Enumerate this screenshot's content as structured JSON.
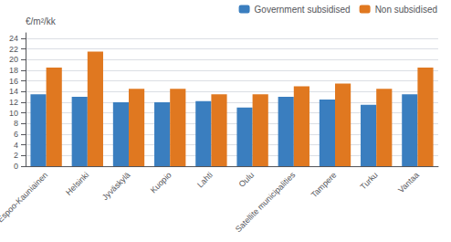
{
  "chart_data": {
    "type": "bar",
    "ylabel": "€/m²/kk",
    "categories": [
      "Espoo-Kauniainen",
      "Helsinki",
      "Jyväskylä",
      "Kuopio",
      "Lahti",
      "Oulu",
      "Satellite municipalities",
      "Tampere",
      "Turku",
      "Vantaa"
    ],
    "series": [
      {
        "name": "Government subsidised",
        "color": "#3a7ebf",
        "values": [
          13.5,
          13.0,
          12.0,
          12.0,
          12.2,
          11.0,
          13.0,
          12.5,
          11.5,
          13.5
        ]
      },
      {
        "name": "Non subsidised",
        "color": "#e07820",
        "values": [
          18.5,
          21.5,
          14.5,
          14.5,
          13.5,
          13.5,
          15.0,
          15.5,
          14.5,
          18.5
        ]
      }
    ],
    "ylim": [
      0,
      25
    ],
    "yticks": [
      0,
      2,
      4,
      6,
      8,
      10,
      12,
      14,
      16,
      18,
      20,
      22,
      24
    ],
    "grid": true,
    "legend": "upper right"
  }
}
